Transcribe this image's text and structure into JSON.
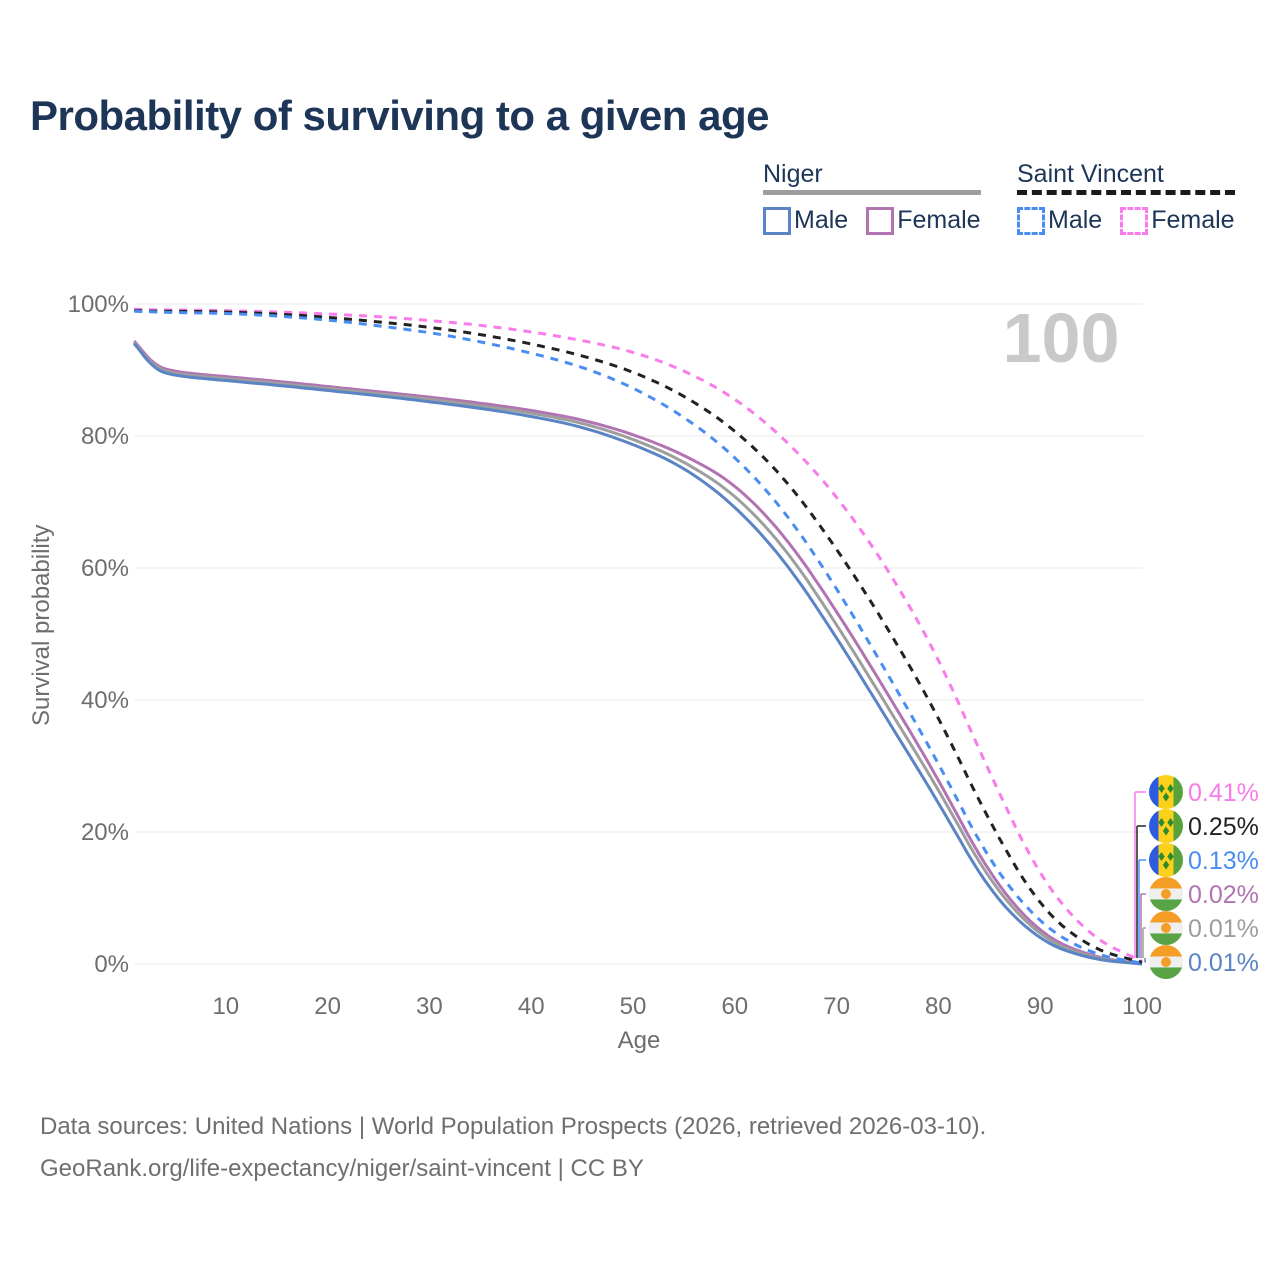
{
  "footer": {
    "line1": "Data sources: United Nations | World Population Prospects (2026, retrieved 2026-03-10).",
    "line2": "GeoRank.org/life-expectancy/niger/saint-vincent | CC BY"
  },
  "legend": {
    "groups": [
      {
        "name": "Niger",
        "line_style": "solid",
        "underline_color": "#9e9e9e",
        "items": [
          {
            "label": "Male",
            "color": "#5b84c4"
          },
          {
            "label": "Female",
            "color": "#b273b2"
          }
        ]
      },
      {
        "name": "Saint Vincent",
        "line_style": "dashed",
        "underline_color": "#1a1a1a",
        "items": [
          {
            "label": "Male",
            "color": "#4a8df2"
          },
          {
            "label": "Female",
            "color": "#f87cea"
          }
        ]
      }
    ]
  },
  "flags": {
    "saint-vincent": {
      "blue": "#2d5be0",
      "yellow": "#fcd11c",
      "green": "#55a33a",
      "diamond": "#2f8a2a"
    },
    "niger": {
      "orange": "#f59e27",
      "white": "#efefef",
      "green": "#57a345",
      "dot": "#f59e27"
    }
  },
  "chart_data": {
    "type": "line",
    "title": "Probability of surviving to a given age",
    "xlabel": "Age",
    "ylabel": "Survival probability",
    "xlim": [
      1,
      100
    ],
    "ylim": [
      0,
      100
    ],
    "x_ticks": [
      10,
      20,
      30,
      40,
      50,
      60,
      70,
      80,
      90,
      100
    ],
    "y_ticks": [
      0,
      20,
      40,
      60,
      80,
      100
    ],
    "y_tick_suffix": "%",
    "grid": true,
    "legend_position": "top-right",
    "watermark": "100",
    "x": [
      1,
      3,
      5,
      10,
      15,
      20,
      25,
      30,
      35,
      40,
      45,
      50,
      55,
      60,
      65,
      70,
      75,
      80,
      85,
      90,
      95,
      100
    ],
    "series": [
      {
        "id": "saint-vincent-female",
        "name": "Saint Vincent Female",
        "color": "#f87cea",
        "dash": true,
        "end_label": "0.41%",
        "flag": "saint-vincent",
        "values": [
          99.2,
          99.1,
          99.1,
          99.0,
          98.8,
          98.5,
          98.1,
          97.5,
          96.8,
          95.8,
          94.5,
          92.8,
          90.0,
          85.8,
          79.5,
          71.0,
          60.0,
          46.5,
          29.0,
          13.0,
          4.0,
          0.41
        ]
      },
      {
        "id": "saint-vincent-both",
        "name": "Saint Vincent",
        "color": "#222222",
        "dash": true,
        "end_label": "0.25%",
        "flag": "saint-vincent",
        "values": [
          99.0,
          98.9,
          98.9,
          98.8,
          98.5,
          98.0,
          97.3,
          96.5,
          95.4,
          94.0,
          92.2,
          89.8,
          86.2,
          81.0,
          73.5,
          63.0,
          51.0,
          37.5,
          21.5,
          8.5,
          2.3,
          0.25
        ]
      },
      {
        "id": "saint-vincent-male",
        "name": "Saint Vincent Male",
        "color": "#4a8df2",
        "dash": true,
        "end_label": "0.13%",
        "flag": "saint-vincent",
        "values": [
          98.9,
          98.8,
          98.7,
          98.6,
          98.2,
          97.6,
          96.7,
          95.7,
          94.3,
          92.6,
          90.5,
          87.4,
          83.0,
          77.0,
          68.5,
          57.0,
          44.0,
          30.5,
          15.5,
          6.0,
          1.5,
          0.13
        ]
      },
      {
        "id": "niger-female",
        "name": "Niger Female",
        "color": "#b273b2",
        "dash": false,
        "end_label": "0.02%",
        "flag": "niger",
        "values": [
          94.4,
          90.7,
          89.7,
          89.0,
          88.3,
          87.5,
          86.7,
          85.9,
          85.0,
          83.9,
          82.5,
          80.3,
          77.2,
          72.8,
          64.8,
          53.5,
          41.0,
          28.0,
          13.5,
          4.5,
          1.1,
          0.02
        ]
      },
      {
        "id": "niger-both",
        "name": "Niger",
        "color": "#9e9e9e",
        "dash": false,
        "end_label": "0.01%",
        "flag": "niger",
        "values": [
          94.2,
          90.4,
          89.4,
          88.7,
          88.0,
          87.2,
          86.4,
          85.6,
          84.6,
          83.5,
          82.0,
          79.6,
          76.2,
          71.2,
          63.0,
          51.5,
          39.0,
          26.5,
          12.5,
          4.0,
          0.9,
          0.01
        ]
      },
      {
        "id": "niger-male",
        "name": "Niger Male",
        "color": "#5b84c4",
        "dash": false,
        "end_label": "0.01%",
        "flag": "niger",
        "values": [
          94.0,
          90.1,
          89.1,
          88.4,
          87.7,
          86.9,
          86.1,
          85.2,
          84.2,
          83.0,
          81.4,
          78.8,
          75.3,
          69.5,
          61.0,
          49.5,
          37.0,
          24.5,
          11.0,
          3.4,
          0.7,
          0.01
        ]
      }
    ]
  }
}
